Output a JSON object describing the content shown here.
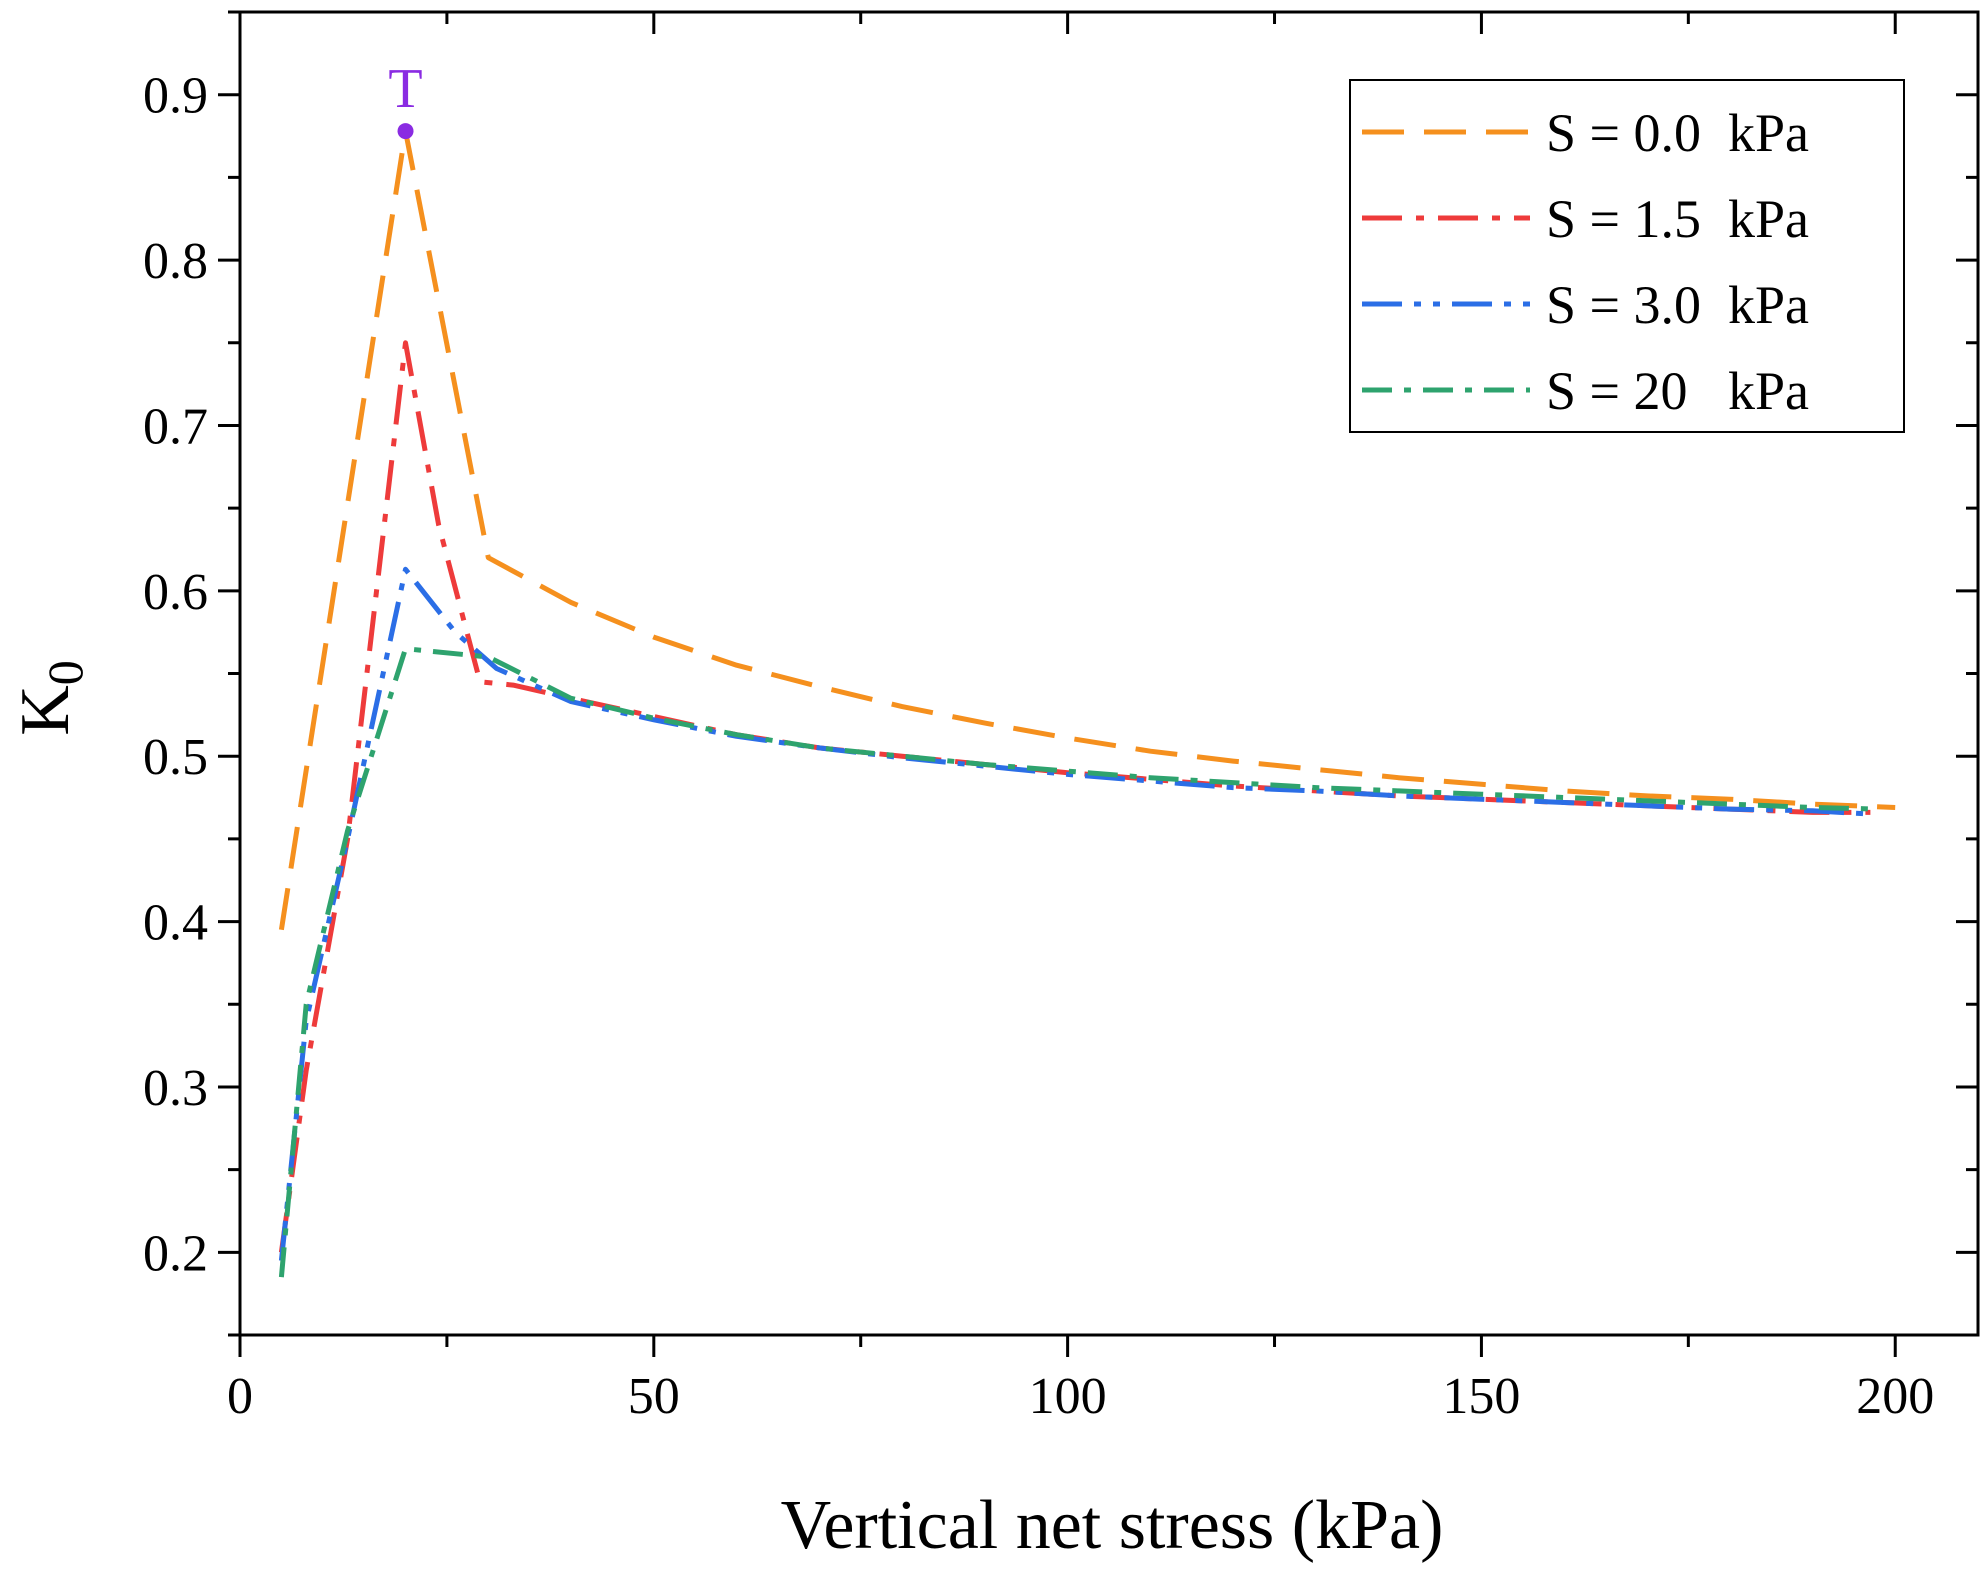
{
  "chart_data": {
    "type": "line",
    "title": "",
    "xlabel": "Vertical net stress (kPa)",
    "ylabel_main": "K",
    "ylabel_sub": "0",
    "xlim": [
      0,
      210
    ],
    "ylim": [
      0.15,
      0.95
    ],
    "xticks": [
      0,
      50,
      100,
      150,
      200
    ],
    "yticks": [
      0.2,
      0.3,
      0.4,
      0.5,
      0.6,
      0.7,
      0.8,
      0.9
    ],
    "xtick_labels": [
      "0",
      "50",
      "100",
      "150",
      "200"
    ],
    "ytick_labels": [
      "0.2",
      "0.3",
      "0.4",
      "0.5",
      "0.6",
      "0.7",
      "0.8",
      "0.9"
    ],
    "grid": false,
    "legend_position": "top-right",
    "series": [
      {
        "name": "S = 0.0  kPa",
        "color": "#f5901e",
        "dash": "dashed",
        "x": [
          5,
          20,
          30,
          40,
          50,
          60,
          70,
          80,
          90,
          100,
          110,
          120,
          130,
          140,
          150,
          160,
          170,
          180,
          190,
          200
        ],
        "y": [
          0.395,
          0.878,
          0.62,
          0.593,
          0.572,
          0.555,
          0.542,
          0.53,
          0.52,
          0.511,
          0.503,
          0.497,
          0.492,
          0.487,
          0.483,
          0.479,
          0.476,
          0.474,
          0.471,
          0.469
        ]
      },
      {
        "name": "S = 1.5  kPa",
        "color": "#ee3b3b",
        "dash": "dashdot",
        "x": [
          5,
          8,
          13,
          20,
          24,
          29,
          33,
          40,
          50,
          60,
          70,
          80,
          90,
          100,
          110,
          120,
          130,
          140,
          150,
          160,
          170,
          180,
          190,
          197
        ],
        "y": [
          0.2,
          0.31,
          0.45,
          0.75,
          0.64,
          0.545,
          0.543,
          0.535,
          0.524,
          0.513,
          0.505,
          0.5,
          0.495,
          0.49,
          0.486,
          0.482,
          0.479,
          0.476,
          0.474,
          0.472,
          0.47,
          0.468,
          0.466,
          0.466
        ]
      },
      {
        "name": "S = 3.0  kPa",
        "color": "#2b6ee6",
        "dash": "dashdotdot",
        "x": [
          5,
          8,
          13,
          20,
          26,
          31,
          40,
          50,
          60,
          70,
          80,
          90,
          100,
          110,
          120,
          130,
          140,
          150,
          160,
          170,
          180,
          190,
          197
        ],
        "y": [
          0.195,
          0.34,
          0.45,
          0.613,
          0.575,
          0.553,
          0.533,
          0.522,
          0.512,
          0.505,
          0.499,
          0.494,
          0.489,
          0.485,
          0.481,
          0.479,
          0.476,
          0.474,
          0.472,
          0.47,
          0.468,
          0.467,
          0.465
        ]
      },
      {
        "name": "S = 20   kPa",
        "color": "#2ea36e",
        "dash": "dashdotlong",
        "x": [
          5,
          8,
          13,
          20,
          30,
          40,
          50,
          60,
          70,
          80,
          90,
          100,
          110,
          120,
          130,
          140,
          150,
          160,
          170,
          180,
          190,
          198
        ],
        "y": [
          0.185,
          0.35,
          0.455,
          0.565,
          0.56,
          0.535,
          0.523,
          0.513,
          0.505,
          0.5,
          0.495,
          0.491,
          0.487,
          0.484,
          0.481,
          0.479,
          0.477,
          0.475,
          0.473,
          0.471,
          0.469,
          0.468
        ]
      }
    ],
    "annotations": [
      {
        "text": "T",
        "x": 20,
        "y": 0.878,
        "color": "#8a2be2"
      }
    ]
  }
}
